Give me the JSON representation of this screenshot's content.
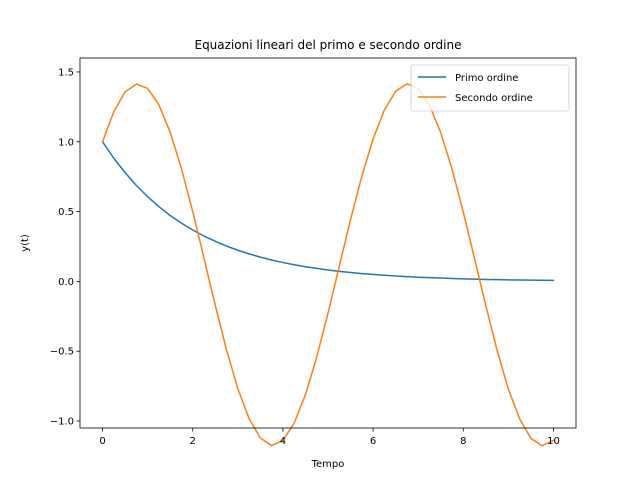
{
  "chart_data": {
    "type": "line",
    "title": "Equazioni lineari del primo e secondo ordine",
    "xlabel": "Tempo",
    "ylabel": "y(t)",
    "xlim": [
      -0.5,
      10.5
    ],
    "ylim": [
      -1.05,
      1.6
    ],
    "xticks": [
      0,
      2,
      4,
      6,
      8,
      10
    ],
    "xtick_labels": [
      "0",
      "2",
      "4",
      "6",
      "8",
      "10"
    ],
    "yticks": [
      -1.0,
      -0.5,
      0.0,
      0.5,
      1.0,
      1.5
    ],
    "ytick_labels": [
      "−1.0",
      "−0.5",
      "0.0",
      "0.5",
      "1.0",
      "1.5"
    ],
    "grid": false,
    "legend_position": "top-right",
    "x": [
      0.0,
      0.25,
      0.5,
      0.75,
      1.0,
      1.25,
      1.5,
      1.75,
      2.0,
      2.25,
      2.5,
      2.75,
      3.0,
      3.25,
      3.5,
      3.75,
      4.0,
      4.25,
      4.5,
      4.75,
      5.0,
      5.25,
      5.5,
      5.75,
      6.0,
      6.25,
      6.5,
      6.75,
      7.0,
      7.25,
      7.5,
      7.75,
      8.0,
      8.25,
      8.5,
      8.75,
      9.0,
      9.25,
      9.5,
      9.75,
      10.0
    ],
    "series": [
      {
        "name": "Primo ordine",
        "color": "#1f77b4",
        "values": [
          1.0,
          0.882,
          0.779,
          0.687,
          0.607,
          0.535,
          0.472,
          0.417,
          0.368,
          0.325,
          0.287,
          0.253,
          0.223,
          0.197,
          0.174,
          0.153,
          0.135,
          0.119,
          0.105,
          0.093,
          0.082,
          0.072,
          0.064,
          0.056,
          0.05,
          0.044,
          0.039,
          0.034,
          0.03,
          0.027,
          0.024,
          0.021,
          0.018,
          0.016,
          0.014,
          0.013,
          0.011,
          0.01,
          0.009,
          0.008,
          0.007
        ]
      },
      {
        "name": "Secondo ordine",
        "color": "#ff7f0e",
        "values": [
          1.0,
          1.216,
          1.357,
          1.413,
          1.382,
          1.264,
          1.068,
          0.808,
          0.5,
          0.166,
          -0.171,
          -0.491,
          -0.768,
          -0.983,
          -1.122,
          -1.176,
          -1.139,
          -1.015,
          -0.811,
          -0.542,
          -0.228,
          0.109,
          0.443,
          0.753,
          1.02,
          1.227,
          1.362,
          1.415,
          1.381,
          1.262,
          1.065,
          0.805,
          0.497,
          0.163,
          -0.174,
          -0.494,
          -0.771,
          -0.985,
          -1.124,
          -1.177,
          -1.139
        ]
      }
    ]
  }
}
